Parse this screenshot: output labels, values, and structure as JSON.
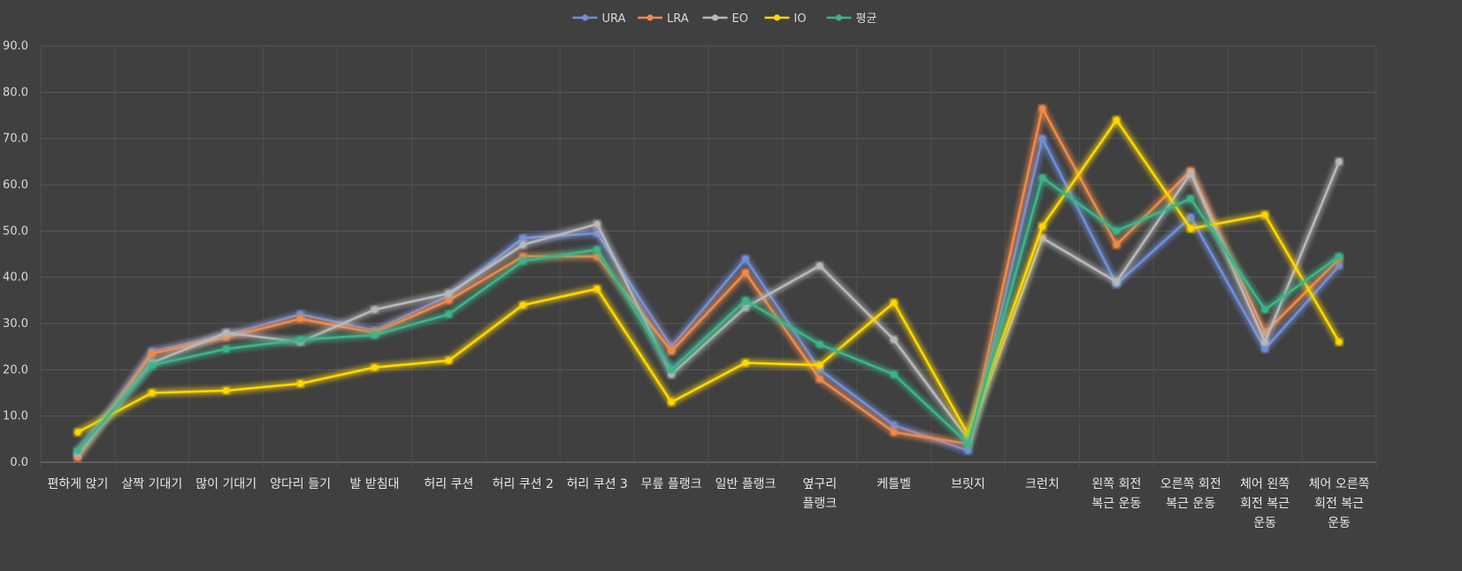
{
  "chart_data": {
    "type": "line",
    "title": "",
    "xlabel": "",
    "ylabel": "",
    "ylim": [
      0,
      90
    ],
    "y_ticks": [
      "0.0",
      "10.0",
      "20.0",
      "30.0",
      "40.0",
      "50.0",
      "60.0",
      "70.0",
      "80.0",
      "90.0"
    ],
    "grid": true,
    "legend_position": "top",
    "categories": [
      "편하게 앉기",
      "살짝 기대기",
      "많이 기대기",
      "양다리 들기",
      "발 받침대",
      "허리 쿠션",
      "허리 쿠션 2",
      "허리 쿠션 3",
      "무릎 플랭크",
      "일반 플랭크",
      "옆구리 플랭크",
      "케틀벨",
      "브릿지",
      "크런치",
      "왼쪽 회전 복근 운동",
      "오른쪽 회전 복근 운동",
      "체어 왼쪽 회전 복근 운동",
      "체어 오른쪽 회전 복근 운동"
    ],
    "category_lines": [
      [
        "편하게 앉기"
      ],
      [
        "살짝 기대기"
      ],
      [
        "많이 기대기"
      ],
      [
        "양다리 들기"
      ],
      [
        "발 받침대"
      ],
      [
        "허리 쿠션"
      ],
      [
        "허리 쿠션 2"
      ],
      [
        "허리 쿠션 3"
      ],
      [
        "무릎 플랭크"
      ],
      [
        "일반 플랭크"
      ],
      [
        "옆구리",
        "플랭크"
      ],
      [
        "케틀벨"
      ],
      [
        "브릿지"
      ],
      [
        "크런치"
      ],
      [
        "왼쪽 회전",
        "복근 운동"
      ],
      [
        "오른쪽 회전",
        "복근 운동"
      ],
      [
        "체어 왼쪽",
        "회전 복근",
        "운동"
      ],
      [
        "체어 오른쪽",
        "회전 복근",
        "운동"
      ]
    ],
    "series": [
      {
        "name": "URA",
        "color": "#6f8fdc",
        "values": [
          1.5,
          24.0,
          27.5,
          32.0,
          28.5,
          36.0,
          48.5,
          49.5,
          25.0,
          44.0,
          20.0,
          8.0,
          2.5,
          70.0,
          38.5,
          53.0,
          24.5,
          42.5
        ]
      },
      {
        "name": "LRA",
        "color": "#f0894a",
        "values": [
          1.0,
          23.5,
          27.0,
          31.0,
          28.0,
          35.0,
          44.5,
          44.5,
          24.0,
          41.0,
          18.0,
          6.5,
          4.0,
          76.5,
          47.0,
          63.0,
          28.0,
          44.0
        ]
      },
      {
        "name": "EO",
        "color": "#b8b8b8",
        "values": [
          2.0,
          21.5,
          28.0,
          26.0,
          33.0,
          36.5,
          47.0,
          51.5,
          19.0,
          33.5,
          42.5,
          26.5,
          5.0,
          48.5,
          39.0,
          62.5,
          26.0,
          65.0
        ]
      },
      {
        "name": "IO",
        "color": "#ffd700",
        "values": [
          6.5,
          15.0,
          15.5,
          17.0,
          20.5,
          22.0,
          34.0,
          37.5,
          13.0,
          21.5,
          21.0,
          34.5,
          6.0,
          51.0,
          74.0,
          50.5,
          53.5,
          26.0
        ]
      },
      {
        "name": "평균",
        "color": "#3cb48a",
        "values": [
          2.5,
          21.0,
          24.5,
          26.5,
          27.5,
          32.0,
          43.5,
          46.0,
          20.0,
          35.0,
          25.5,
          19.0,
          4.0,
          61.5,
          50.0,
          57.0,
          33.0,
          44.5
        ]
      }
    ]
  }
}
